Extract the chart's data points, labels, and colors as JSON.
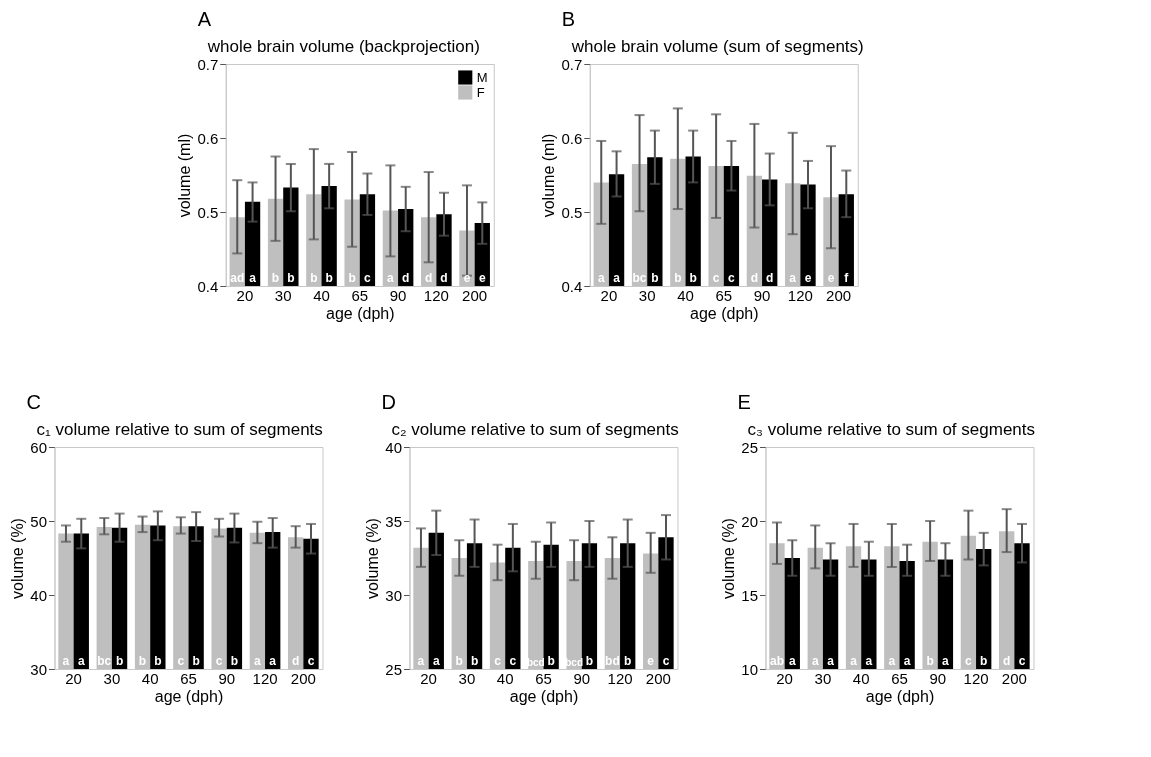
{
  "chart_data": [
    {
      "type": "bar",
      "title": "whole brain volume (backprojection)",
      "xlabel": "age (dph)",
      "ylabel": "volume (ml)",
      "annotations": [
        "A"
      ],
      "categories": [
        "20",
        "30",
        "40",
        "65",
        "90",
        "120",
        "200"
      ],
      "ylim": [
        0.4,
        0.7
      ],
      "yticks": [
        0.4,
        0.5,
        0.6,
        0.7
      ],
      "grid": false,
      "legend": "top right",
      "series": [
        {
          "name": "F",
          "color": "#bfbfbf",
          "values": [
            0.493,
            0.518,
            0.524,
            0.517,
            0.502,
            0.493,
            0.475
          ],
          "errors": [
            [
              0.444,
              0.543
            ],
            [
              0.461,
              0.575
            ],
            [
              0.463,
              0.585
            ],
            [
              0.453,
              0.581
            ],
            [
              0.44,
              0.563
            ],
            [
              0.432,
              0.554
            ],
            [
              0.414,
              0.536
            ]
          ],
          "value_labels": [
            "ad",
            "b",
            "b",
            "b",
            "a",
            "d",
            "e"
          ]
        },
        {
          "name": "M",
          "color": "#000000",
          "values": [
            0.514,
            0.533,
            0.535,
            0.524,
            0.504,
            0.497,
            0.485
          ],
          "errors": [
            [
              0.487,
              0.54
            ],
            [
              0.501,
              0.565
            ],
            [
              0.505,
              0.565
            ],
            [
              0.496,
              0.552
            ],
            [
              0.474,
              0.534
            ],
            [
              0.468,
              0.526
            ],
            [
              0.457,
              0.513
            ]
          ],
          "value_labels": [
            "a",
            "b",
            "b",
            "c",
            "d",
            "d",
            "e"
          ]
        }
      ]
    },
    {
      "type": "bar",
      "title": "whole brain volume (sum of segments)",
      "xlabel": "age (dph)",
      "ylabel": "volume (ml)",
      "annotations": [
        "B"
      ],
      "categories": [
        "20",
        "30",
        "40",
        "65",
        "90",
        "120",
        "200"
      ],
      "ylim": [
        0.4,
        0.7
      ],
      "yticks": [
        0.4,
        0.5,
        0.6,
        0.7
      ],
      "grid": false,
      "series": [
        {
          "color": "#bfbfbf",
          "values": [
            0.54,
            0.565,
            0.572,
            0.562,
            0.549,
            0.539,
            0.52
          ],
          "errors": [
            [
              0.484,
              0.596
            ],
            [
              0.501,
              0.631
            ],
            [
              0.504,
              0.64
            ],
            [
              0.492,
              0.632
            ],
            [
              0.479,
              0.619
            ],
            [
              0.47,
              0.607
            ],
            [
              0.451,
              0.589
            ]
          ],
          "value_labels": [
            "a",
            "bc",
            "b",
            "c",
            "d",
            "a",
            "e"
          ]
        },
        {
          "color": "#000000",
          "values": [
            0.551,
            0.574,
            0.575,
            0.562,
            0.544,
            0.537,
            0.524
          ],
          "errors": [
            [
              0.521,
              0.582
            ],
            [
              0.538,
              0.61
            ],
            [
              0.54,
              0.61
            ],
            [
              0.529,
              0.596
            ],
            [
              0.509,
              0.579
            ],
            [
              0.505,
              0.569
            ],
            [
              0.493,
              0.556
            ]
          ],
          "value_labels": [
            "a",
            "b",
            "b",
            "c",
            "d",
            "e",
            "f"
          ]
        }
      ]
    },
    {
      "type": "bar",
      "title": "c₁ volume relative to sum of segments",
      "xlabel": "age (dph)",
      "ylabel": "volume (%)",
      "annotations": [
        "C"
      ],
      "categories": [
        "20",
        "30",
        "40",
        "65",
        "90",
        "120",
        "200"
      ],
      "ylim": [
        30,
        60
      ],
      "yticks": [
        30,
        40,
        50,
        60
      ],
      "grid": false,
      "series": [
        {
          "color": "#bfbfbf",
          "values": [
            48.3,
            49.2,
            49.5,
            49.3,
            49.0,
            48.4,
            47.8
          ],
          "errors": [
            [
              47.2,
              49.4
            ],
            [
              48.2,
              50.4
            ],
            [
              48.5,
              50.6
            ],
            [
              48.3,
              50.5
            ],
            [
              47.9,
              50.3
            ],
            [
              47.0,
              49.9
            ],
            [
              46.4,
              49.3
            ]
          ],
          "value_labels": [
            "a",
            "bc",
            "b",
            "c",
            "c",
            "a",
            "d"
          ]
        },
        {
          "color": "#000000",
          "values": [
            48.3,
            49.1,
            49.4,
            49.3,
            49.1,
            48.5,
            47.6
          ],
          "errors": [
            [
              46.3,
              50.3
            ],
            [
              47.2,
              51.0
            ],
            [
              47.4,
              51.3
            ],
            [
              47.3,
              51.2
            ],
            [
              47.1,
              51.0
            ],
            [
              46.4,
              50.4
            ],
            [
              45.6,
              49.6
            ]
          ],
          "value_labels": [
            "a",
            "b",
            "b",
            "b",
            "b",
            "a",
            "c"
          ]
        }
      ]
    },
    {
      "type": "bar",
      "title": "c₂ volume relative to sum of segments",
      "xlabel": "age (dph)",
      "ylabel": "volume (%)",
      "annotations": [
        "D"
      ],
      "categories": [
        "20",
        "30",
        "40",
        "65",
        "90",
        "120",
        "200"
      ],
      "ylim": [
        25,
        40
      ],
      "yticks": [
        25,
        30,
        35,
        40
      ],
      "grid": false,
      "series": [
        {
          "color": "#bfbfbf",
          "values": [
            33.2,
            32.5,
            32.2,
            32.3,
            32.3,
            32.5,
            32.8
          ],
          "errors": [
            [
              31.9,
              34.5
            ],
            [
              31.3,
              33.7
            ],
            [
              31.0,
              33.4
            ],
            [
              31.1,
              33.6
            ],
            [
              31.0,
              33.7
            ],
            [
              31.1,
              33.9
            ],
            [
              31.5,
              34.2
            ]
          ],
          "value_labels": [
            "a",
            "b",
            "c",
            "bcd",
            "bcd",
            "bd",
            "e"
          ]
        },
        {
          "color": "#000000",
          "values": [
            34.2,
            33.5,
            33.2,
            33.4,
            33.5,
            33.5,
            33.9
          ],
          "errors": [
            [
              32.7,
              35.7
            ],
            [
              31.9,
              35.1
            ],
            [
              31.6,
              34.8
            ],
            [
              31.9,
              34.9
            ],
            [
              31.9,
              35.0
            ],
            [
              31.9,
              35.1
            ],
            [
              32.4,
              35.4
            ]
          ],
          "value_labels": [
            "a",
            "b",
            "c",
            "b",
            "b",
            "b",
            "c"
          ]
        }
      ]
    },
    {
      "type": "bar",
      "title": "c₃ volume relative to sum of segments",
      "xlabel": "age (dph)",
      "ylabel": "volume (%)",
      "annotations": [
        "E"
      ],
      "categories": [
        "20",
        "30",
        "40",
        "65",
        "90",
        "120",
        "200"
      ],
      "ylim": [
        10,
        25
      ],
      "yticks": [
        10,
        15,
        20,
        25
      ],
      "grid": false,
      "series": [
        {
          "color": "#bfbfbf",
          "values": [
            18.5,
            18.2,
            18.3,
            18.3,
            18.6,
            19.0,
            19.3
          ],
          "errors": [
            [
              17.1,
              19.9
            ],
            [
              16.8,
              19.7
            ],
            [
              16.9,
              19.8
            ],
            [
              16.9,
              19.8
            ],
            [
              17.3,
              20.0
            ],
            [
              17.4,
              20.7
            ],
            [
              17.9,
              20.8
            ]
          ],
          "value_labels": [
            "ab",
            "a",
            "a",
            "a",
            "b",
            "c",
            "d"
          ]
        },
        {
          "color": "#000000",
          "values": [
            17.5,
            17.4,
            17.4,
            17.3,
            17.4,
            18.1,
            18.5
          ],
          "errors": [
            [
              16.3,
              18.7
            ],
            [
              16.3,
              18.5
            ],
            [
              16.3,
              18.6
            ],
            [
              16.3,
              18.4
            ],
            [
              16.3,
              18.5
            ],
            [
              17.0,
              19.2
            ],
            [
              17.2,
              19.8
            ]
          ],
          "value_labels": [
            "a",
            "a",
            "a",
            "a",
            "a",
            "b",
            "c"
          ]
        }
      ]
    }
  ]
}
